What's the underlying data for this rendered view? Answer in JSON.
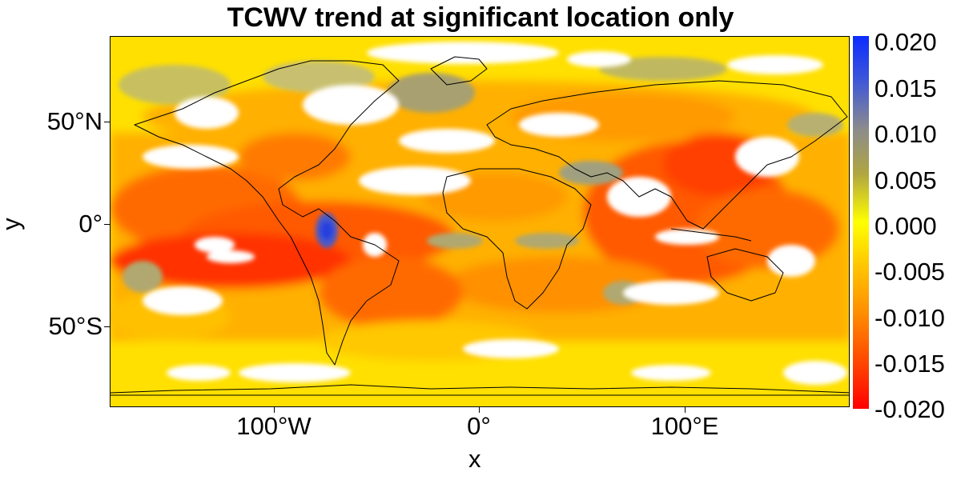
{
  "title": "TCWV trend at significant location only",
  "x_axis": {
    "label": "x",
    "ticks": [
      "100°W",
      "0°",
      "100°E"
    ]
  },
  "y_axis": {
    "label": "y",
    "ticks": [
      "50°N",
      "0°",
      "50°S"
    ]
  },
  "colorbar": {
    "labels": [
      "0.020",
      "0.015",
      "0.010",
      "0.005",
      "0.000",
      "-0.005",
      "-0.010",
      "-0.015",
      "-0.020"
    ],
    "colors": [
      "#0b2cff",
      "#3f57d8",
      "#8c8c8c",
      "#b0a640",
      "#ffff00",
      "#ffc400",
      "#ff8a00",
      "#ff4400",
      "#ff0000"
    ]
  },
  "map": {
    "projection": "equirectangular",
    "extent": {
      "lon": [
        -180,
        180
      ],
      "lat": [
        -90,
        90
      ]
    },
    "nonsignificant_color": "#ffffff",
    "coastline_color": "#000000"
  }
}
